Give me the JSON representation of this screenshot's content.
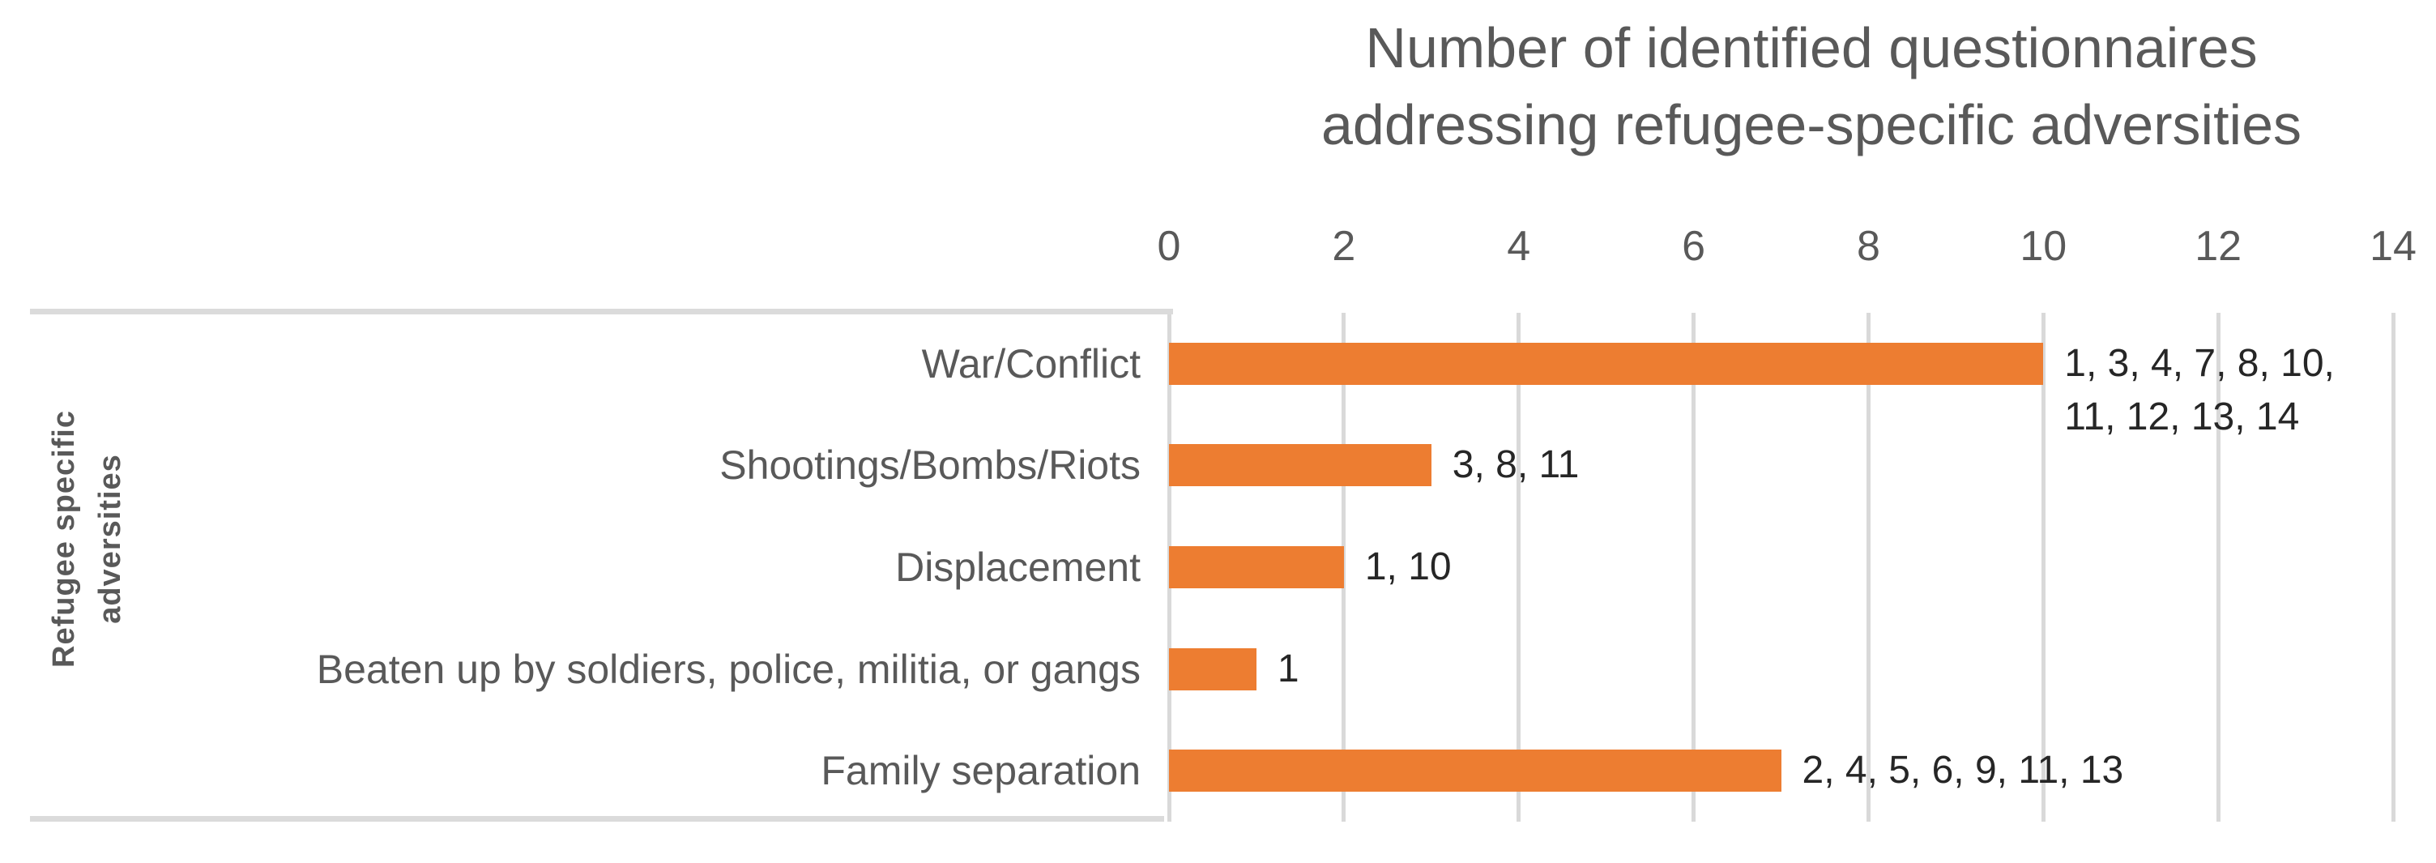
{
  "chart_data": {
    "type": "bar",
    "orientation": "horizontal",
    "title": "Number of identified questionnaires addressing refugee-specific adversities",
    "title_lines": [
      "Number of identified questionnaires",
      "addressing refugee-specific adversities"
    ],
    "ylabel": "Refugee specific adversities",
    "ylabel_lines": [
      "Refugee specific",
      "adversities"
    ],
    "xlabel": "",
    "categories": [
      "War/Conflict",
      "Shootings/Bombs/Riots",
      "Displacement",
      "Beaten up by soldiers, police, militia, or gangs",
      "Family separation"
    ],
    "values": [
      10,
      3,
      2,
      1,
      7
    ],
    "data_labels": [
      [
        "1, 3, 4, 7, 8, 10,",
        "11, 12, 13, 14"
      ],
      [
        "3, 8, 11"
      ],
      [
        "1, 10"
      ],
      [
        "1"
      ],
      [
        "2, 4, 5, 6, 9, 11, 13"
      ]
    ],
    "x_ticks": [
      0,
      2,
      4,
      6,
      8,
      10,
      12,
      14
    ],
    "xlim": [
      0,
      14
    ],
    "grid": true,
    "legend": false,
    "bar_color": "#ED7D31",
    "gridline_color": "#D9D9D9",
    "axis_text_color": "#595959",
    "data_label_color": "#262626",
    "border_color": "#DBDBDB"
  }
}
